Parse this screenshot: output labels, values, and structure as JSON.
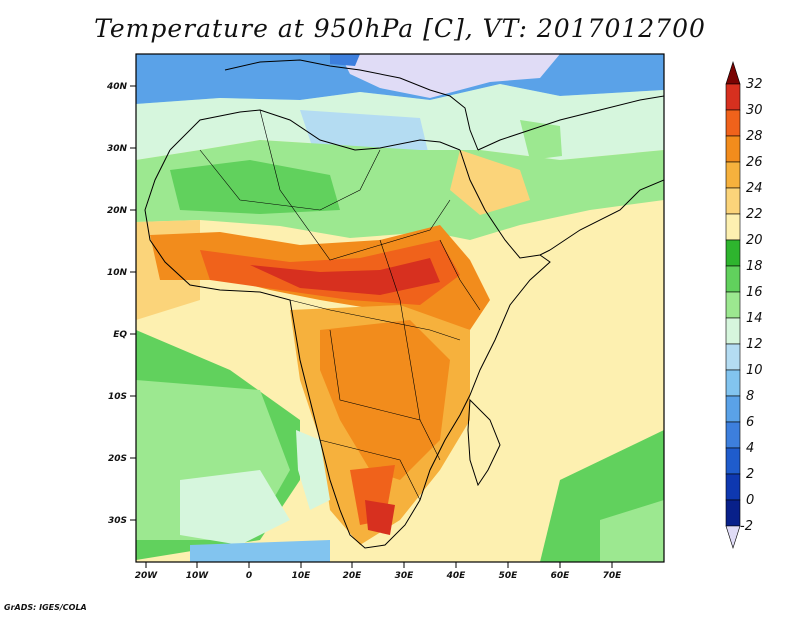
{
  "title": "Temperature at 950hPa [C], VT: 2017012700",
  "footer": "GrADS: IGES/COLA",
  "axes": {
    "x_ticks": [
      "20W",
      "10W",
      "0",
      "10E",
      "20E",
      "30E",
      "40E",
      "50E",
      "60E",
      "70E"
    ],
    "y_ticks": [
      "40N",
      "30N",
      "20N",
      "10N",
      "EQ",
      "10S",
      "20S",
      "30S"
    ]
  },
  "colorbar": {
    "levels": [
      "32",
      "30",
      "28",
      "26",
      "24",
      "22",
      "20",
      "18",
      "16",
      "14",
      "12",
      "10",
      "8",
      "6",
      "4",
      "2",
      "0",
      "-2"
    ],
    "colors": [
      "#7a0403",
      "#d7301f",
      "#f0621b",
      "#f28c1c",
      "#f6b13d",
      "#fbd47a",
      "#fdf0b0",
      "#2eb52e",
      "#61d15d",
      "#9ce890",
      "#d6f6dd",
      "#b4dcf2",
      "#82c4ef",
      "#5aa2e8",
      "#3d7fdd",
      "#1f5ccc",
      "#0e38b0",
      "#08208a",
      "#e0dcf6"
    ]
  }
}
